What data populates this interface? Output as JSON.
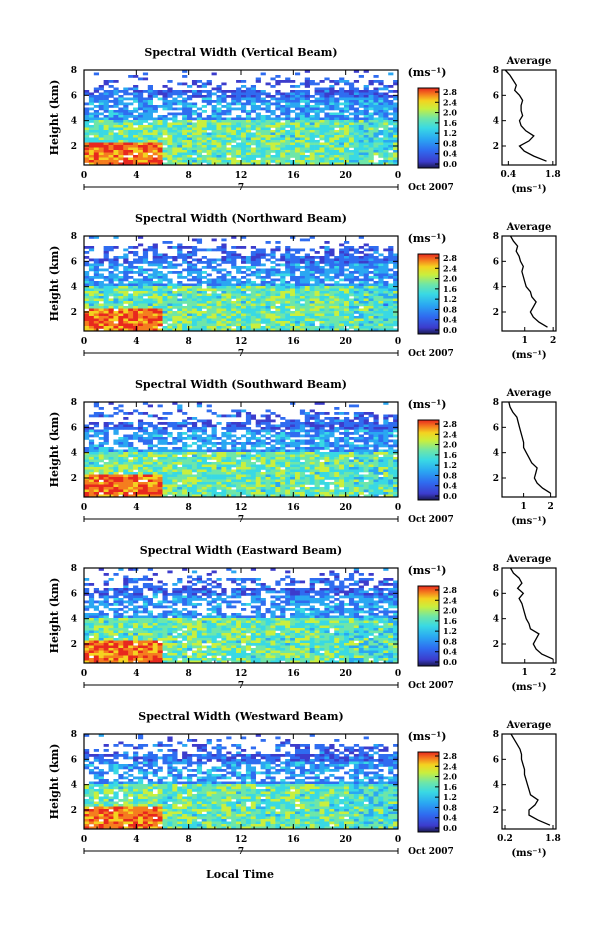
{
  "figure": {
    "xlabel": "Local Time",
    "date_label": "Oct 2007",
    "colorbar_unit": "(ms⁻¹)",
    "colorbar_ticks": [
      "0.0",
      "0.4",
      "0.8",
      "1.2",
      "1.6",
      "2.0",
      "2.4",
      "2.8"
    ],
    "colors": [
      "#1a1a50",
      "#3c3ccc",
      "#2f6cf0",
      "#2aa7f2",
      "#39d9e4",
      "#6ee6a8",
      "#c9ef3e",
      "#f4d320",
      "#f57d1e",
      "#e8281e"
    ]
  },
  "chart_data": [
    {
      "type": "heatmap",
      "title": "Spectral Width (Vertical Beam)",
      "ylabel": "Height (km)",
      "xlabel": "",
      "x_ticks": [
        "0",
        "4",
        "8",
        "12",
        "16",
        "20",
        "0"
      ],
      "x_sub_label": "7",
      "y_ticks": [
        "2",
        "4",
        "6",
        "8"
      ],
      "xlim": [
        0,
        24
      ],
      "ylim": [
        0.5,
        8
      ],
      "colorbar_ticks": [
        "0.0",
        "0.4",
        "0.8",
        "1.2",
        "1.6",
        "2.0",
        "2.4",
        "2.8"
      ],
      "profile": {
        "title": "Average",
        "xlabel": "(ms⁻¹)",
        "x_ticks": [
          "0.4",
          "1.8"
        ],
        "xlim": [
          0.2,
          1.9
        ],
        "y_ticks": [
          "2",
          "4",
          "6",
          "8"
        ],
        "height_km": [
          0.8,
          1.2,
          1.6,
          2.0,
          2.4,
          2.8,
          3.2,
          3.6,
          4.0,
          4.4,
          4.8,
          5.2,
          5.6,
          6.0,
          6.4,
          6.8,
          7.2,
          7.6,
          8.0
        ],
        "width_ms": [
          1.6,
          1.2,
          0.9,
          0.75,
          1.05,
          1.2,
          0.95,
          0.8,
          0.75,
          0.85,
          0.8,
          0.8,
          0.85,
          0.75,
          0.6,
          0.65,
          0.55,
          0.45,
          0.3
        ]
      }
    },
    {
      "type": "heatmap",
      "title": "Spectral Width (Northward Beam)",
      "ylabel": "Height (km)",
      "xlabel": "",
      "x_ticks": [
        "0",
        "4",
        "8",
        "12",
        "16",
        "20",
        "0"
      ],
      "x_sub_label": "7",
      "y_ticks": [
        "2",
        "4",
        "6",
        "8"
      ],
      "xlim": [
        0,
        24
      ],
      "ylim": [
        0.5,
        8
      ],
      "colorbar_ticks": [
        "0.0",
        "0.4",
        "0.8",
        "1.2",
        "1.6",
        "2.0",
        "2.4",
        "2.8"
      ],
      "profile": {
        "title": "Average",
        "xlabel": "(ms⁻¹)",
        "x_ticks": [
          "1",
          "2"
        ],
        "xlim": [
          0.2,
          2.1
        ],
        "y_ticks": [
          "2",
          "4",
          "6",
          "8"
        ],
        "height_km": [
          0.8,
          1.2,
          1.6,
          2.0,
          2.4,
          2.8,
          3.2,
          3.6,
          4.0,
          4.4,
          4.8,
          5.2,
          5.6,
          6.0,
          6.4,
          6.8,
          7.2,
          7.6,
          8.0
        ],
        "width_ms": [
          1.8,
          1.5,
          1.3,
          1.2,
          1.3,
          1.4,
          1.25,
          1.2,
          1.05,
          1.0,
          0.95,
          0.9,
          0.95,
          0.85,
          0.8,
          0.7,
          0.75,
          0.6,
          0.5
        ]
      }
    },
    {
      "type": "heatmap",
      "title": "Spectral Width (Southward Beam)",
      "ylabel": "Height (km)",
      "xlabel": "",
      "x_ticks": [
        "0",
        "4",
        "8",
        "12",
        "16",
        "20",
        "0"
      ],
      "x_sub_label": "7",
      "y_ticks": [
        "2",
        "4",
        "6",
        "8"
      ],
      "xlim": [
        0,
        24
      ],
      "ylim": [
        0.5,
        8
      ],
      "colorbar_ticks": [
        "0.0",
        "0.4",
        "0.8",
        "1.2",
        "1.6",
        "2.0",
        "2.4",
        "2.8"
      ],
      "profile": {
        "title": "Average",
        "xlabel": "(ms⁻¹)",
        "x_ticks": [
          "1",
          "2"
        ],
        "xlim": [
          0.2,
          2.2
        ],
        "y_ticks": [
          "2",
          "4",
          "6",
          "8"
        ],
        "height_km": [
          0.8,
          1.2,
          1.6,
          2.0,
          2.4,
          2.8,
          3.2,
          3.6,
          4.0,
          4.4,
          4.8,
          5.2,
          5.6,
          6.0,
          6.4,
          6.8,
          7.2,
          7.6,
          8.0
        ],
        "width_ms": [
          2.0,
          1.7,
          1.5,
          1.4,
          1.45,
          1.5,
          1.3,
          1.2,
          1.1,
          1.0,
          1.0,
          0.95,
          0.9,
          0.85,
          0.8,
          0.75,
          0.6,
          0.5,
          0.45
        ]
      }
    },
    {
      "type": "heatmap",
      "title": "Spectral Width (Eastward Beam)",
      "ylabel": "Height (km)",
      "xlabel": "",
      "x_ticks": [
        "0",
        "4",
        "8",
        "12",
        "16",
        "20",
        "0"
      ],
      "x_sub_label": "7",
      "y_ticks": [
        "2",
        "4",
        "6",
        "8"
      ],
      "xlim": [
        0,
        24
      ],
      "ylim": [
        0.5,
        8
      ],
      "colorbar_ticks": [
        "0.0",
        "0.4",
        "0.8",
        "1.2",
        "1.6",
        "2.0",
        "2.4",
        "2.8"
      ],
      "profile": {
        "title": "Average",
        "xlabel": "(ms⁻¹)",
        "x_ticks": [
          "1",
          "2"
        ],
        "xlim": [
          0.2,
          2.1
        ],
        "y_ticks": [
          "2",
          "4",
          "6",
          "8"
        ],
        "height_km": [
          0.8,
          1.2,
          1.6,
          2.0,
          2.4,
          2.8,
          3.2,
          3.6,
          4.0,
          4.4,
          4.8,
          5.2,
          5.6,
          6.0,
          6.4,
          6.8,
          7.2,
          7.6,
          8.0
        ],
        "width_ms": [
          2.0,
          1.6,
          1.4,
          1.3,
          1.4,
          1.5,
          1.2,
          1.15,
          1.05,
          1.0,
          0.95,
          0.9,
          0.8,
          0.95,
          0.75,
          0.9,
          0.8,
          0.6,
          0.5
        ]
      }
    },
    {
      "type": "heatmap",
      "title": "Spectral Width (Westward Beam)",
      "ylabel": "Height (km)",
      "xlabel": "Local Time",
      "x_ticks": [
        "0",
        "4",
        "8",
        "12",
        "16",
        "20",
        "0"
      ],
      "x_sub_label": "7",
      "y_ticks": [
        "2",
        "4",
        "6",
        "8"
      ],
      "xlim": [
        0,
        24
      ],
      "ylim": [
        0.5,
        8
      ],
      "colorbar_ticks": [
        "0.0",
        "0.4",
        "0.8",
        "1.2",
        "1.6",
        "2.0",
        "2.4",
        "2.8"
      ],
      "profile": {
        "title": "Average",
        "xlabel": "(ms⁻¹)",
        "x_ticks": [
          "0.2",
          "1.8"
        ],
        "xlim": [
          0.1,
          1.9
        ],
        "y_ticks": [
          "2",
          "4",
          "6",
          "8"
        ],
        "height_km": [
          0.8,
          1.2,
          1.6,
          2.0,
          2.4,
          2.8,
          3.2,
          3.6,
          4.0,
          4.4,
          4.8,
          5.2,
          5.6,
          6.0,
          6.4,
          6.8,
          7.2,
          7.6,
          8.0
        ],
        "width_ms": [
          1.7,
          1.3,
          1.0,
          1.0,
          1.2,
          1.3,
          1.05,
          1.0,
          0.95,
          0.9,
          0.85,
          0.85,
          0.8,
          0.75,
          0.75,
          0.7,
          0.6,
          0.5,
          0.4
        ]
      }
    }
  ]
}
